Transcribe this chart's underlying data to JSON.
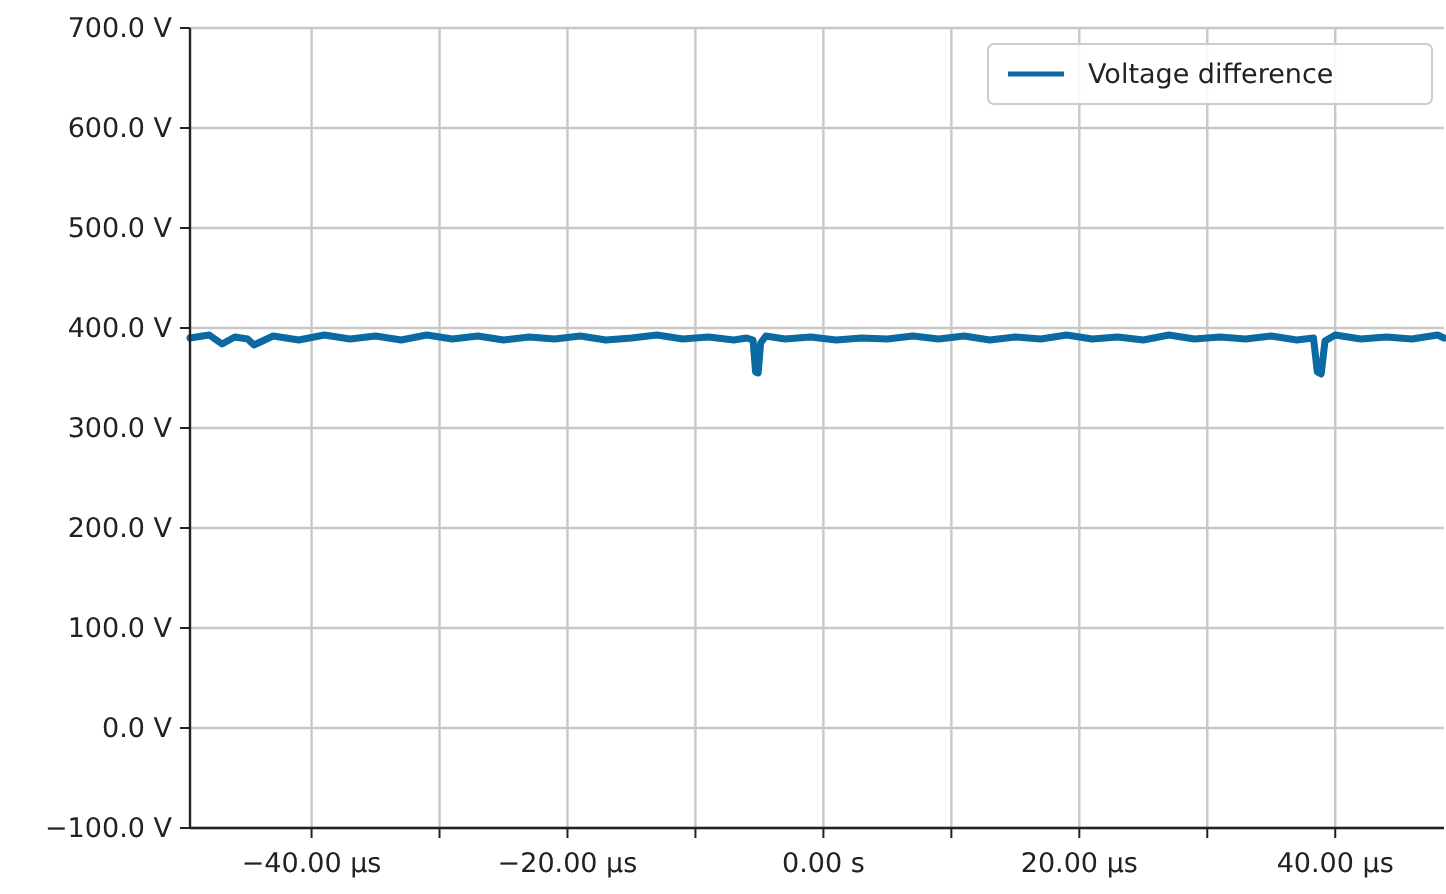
{
  "chart_data": {
    "type": "line",
    "x": [
      -49.5,
      -48,
      -47,
      -46,
      -45,
      -44.5,
      -43,
      -41,
      -39,
      -37,
      -35,
      -33,
      -31,
      -29,
      -27,
      -25,
      -23,
      -21,
      -19,
      -17,
      -15,
      -13,
      -11,
      -9,
      -7,
      -6,
      -5.5,
      -5.3,
      -5.1,
      -4.9,
      -4.5,
      -3,
      -1,
      1,
      3,
      5,
      7,
      9,
      11,
      13,
      15,
      17,
      19,
      21,
      23,
      25,
      27,
      29,
      31,
      33,
      35,
      37,
      38.3,
      38.6,
      38.9,
      39.2,
      40,
      42,
      44,
      46,
      48,
      48.5
    ],
    "series": [
      {
        "name": "Voltage difference",
        "color": "#0a6aa1",
        "values": [
          390,
          393,
          384,
          391,
          389,
          383,
          392,
          388,
          393,
          389,
          392,
          388,
          393,
          389,
          392,
          388,
          391,
          389,
          392,
          388,
          390,
          393,
          389,
          391,
          388,
          390,
          388,
          356,
          355,
          385,
          392,
          389,
          391,
          388,
          390,
          389,
          392,
          389,
          392,
          388,
          391,
          389,
          393,
          389,
          391,
          388,
          393,
          389,
          391,
          389,
          392,
          388,
          390,
          356,
          354,
          387,
          393,
          389,
          391,
          389,
          393,
          390
        ]
      }
    ],
    "xlim": [
      -49.5,
      48.5
    ],
    "xticks": [
      {
        "value": -40,
        "label": "−40.00 µs"
      },
      {
        "value": -30,
        "label": null
      },
      {
        "value": -20,
        "label": "−20.00 µs"
      },
      {
        "value": -10,
        "label": null
      },
      {
        "value": 0,
        "label": "0.00 s"
      },
      {
        "value": 10,
        "label": null
      },
      {
        "value": 20,
        "label": "20.00 µs"
      },
      {
        "value": 30,
        "label": null
      },
      {
        "value": 40,
        "label": "40.00 µs"
      }
    ],
    "ylim": [
      -100,
      700
    ],
    "yticks": [
      {
        "value": -100,
        "label": "−100.0 V"
      },
      {
        "value": 0,
        "label": "0.0 V"
      },
      {
        "value": 100,
        "label": "100.0 V"
      },
      {
        "value": 200,
        "label": "200.0 V"
      },
      {
        "value": 300,
        "label": "300.0 V"
      },
      {
        "value": 400,
        "label": "400.0 V"
      },
      {
        "value": 500,
        "label": "500.0 V"
      },
      {
        "value": 600,
        "label": "600.0 V"
      },
      {
        "value": 700,
        "label": "700.0 V"
      }
    ],
    "grid": true,
    "legend": "top right",
    "marker": "none",
    "line_style": "solid"
  }
}
